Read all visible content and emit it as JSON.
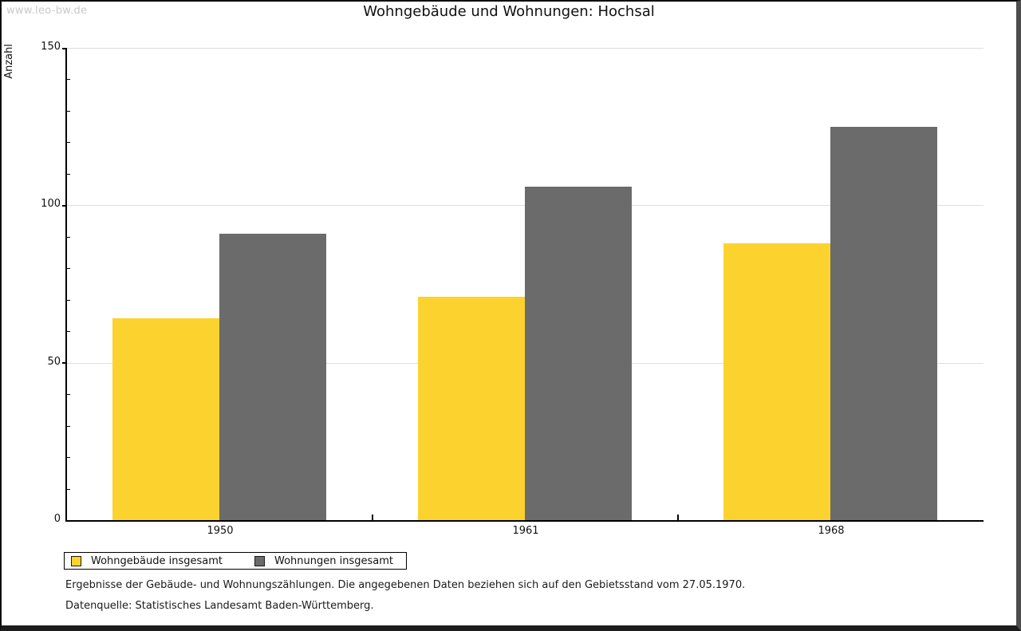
{
  "watermark": "www.leo-bw.de",
  "header": {
    "title": "Wohngebäude und Wohnungen: Hochsal"
  },
  "chart_data": {
    "type": "bar",
    "title": "Wohngebäude und Wohnungen: Hochsal",
    "categories": [
      "1950",
      "1961",
      "1968"
    ],
    "series": [
      {
        "name": "Wohngebäude insgesamt",
        "color": "#FCD32E",
        "values": [
          64,
          71,
          88
        ]
      },
      {
        "name": "Wohnungen insgesamt",
        "color": "#6B6B6B",
        "values": [
          91,
          106,
          125
        ]
      }
    ],
    "xlabel": "",
    "ylabel": "Anzahl",
    "ylim": [
      0,
      150
    ],
    "yticks": [
      0,
      50,
      100,
      150
    ],
    "minor_tick_step": 10,
    "grid": "horizontal-major",
    "gridline_color": "#dedede",
    "legend_position": "bottom-left"
  },
  "footnotes": {
    "line1": "Ergebnisse der Gebäude- und Wohnungszählungen. Die angegebenen Daten beziehen sich auf den Gebietsstand vom 27.05.1970.",
    "line2": "Datenquelle: Statistisches Landesamt Baden-Württemberg."
  }
}
